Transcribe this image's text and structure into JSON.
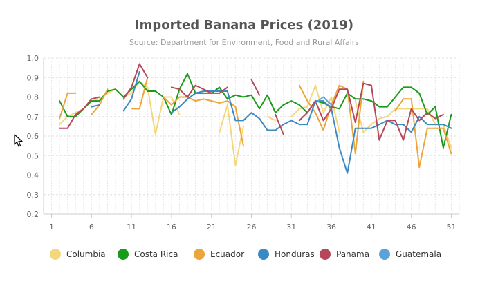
{
  "chart_data": {
    "type": "line",
    "title": "Imported Banana Prices (2019)",
    "subtitle": "Source: Department for Environment, Food and Rural Affairs",
    "xlabel": "",
    "ylabel": "",
    "xlim": [
      0,
      52
    ],
    "ylim": [
      0.2,
      1.0
    ],
    "x_ticks": [
      1,
      6,
      11,
      16,
      21,
      26,
      31,
      36,
      41,
      46,
      51
    ],
    "y_ticks": [
      "0.2",
      "0.3",
      "0.4",
      "0.5",
      "0.6",
      "0.7",
      "0.8",
      "0.9",
      "1.0"
    ],
    "grid": true,
    "legend_position": "bottom",
    "series": [
      {
        "name": "Columbia",
        "color": "#f5d67b",
        "values": [
          null,
          0.66,
          0.7,
          0.72,
          0.74,
          0.78,
          0.79,
          0.82,
          0.84,
          0.8,
          0.82,
          0.88,
          0.85,
          0.61,
          0.8,
          0.8,
          0.71,
          null,
          null,
          null,
          null,
          0.62,
          0.76,
          0.45,
          0.65,
          null,
          null,
          0.7,
          0.68,
          null,
          0.7,
          0.74,
          0.75,
          0.86,
          0.72,
          0.8,
          0.62,
          null,
          0.78,
          0.62,
          0.66,
          0.69,
          0.7,
          0.74,
          0.74,
          0.74,
          0.74,
          0.74,
          0.66,
          0.66,
          0.54
        ]
      },
      {
        "name": "Costa Rica",
        "color": "#1a9a1a",
        "values": [
          null,
          0.78,
          0.7,
          0.7,
          0.74,
          0.78,
          0.78,
          0.83,
          0.84,
          0.8,
          0.84,
          0.88,
          0.83,
          0.83,
          0.8,
          0.71,
          0.84,
          0.92,
          0.82,
          0.82,
          0.82,
          0.85,
          0.79,
          0.81,
          0.8,
          0.81,
          0.74,
          0.81,
          0.72,
          0.76,
          0.78,
          0.76,
          0.72,
          0.78,
          0.77,
          0.75,
          0.74,
          0.82,
          0.79,
          0.79,
          0.78,
          0.75,
          0.75,
          0.8,
          0.85,
          0.85,
          0.82,
          0.71,
          0.75,
          0.54,
          0.71
        ]
      },
      {
        "name": "Ecuador",
        "color": "#eba53a",
        "values": [
          null,
          0.69,
          0.82,
          0.82,
          null,
          0.71,
          0.76,
          0.84,
          null,
          null,
          0.74,
          0.74,
          0.9,
          null,
          0.8,
          0.76,
          0.8,
          0.8,
          0.78,
          0.79,
          0.78,
          0.77,
          0.78,
          0.75,
          0.55,
          null,
          null,
          null,
          null,
          null,
          null,
          0.86,
          0.78,
          0.72,
          0.63,
          0.76,
          0.86,
          0.84,
          0.51,
          0.88,
          null,
          null,
          null,
          0.73,
          0.79,
          0.79,
          0.44,
          0.64,
          0.64,
          0.64,
          0.51
        ]
      },
      {
        "name": "Honduras",
        "color": "#3a88c4",
        "values": [
          null,
          null,
          null,
          null,
          null,
          0.75,
          0.76,
          null,
          null,
          0.73,
          0.79,
          0.93,
          null,
          null,
          null,
          0.72,
          0.75,
          0.79,
          0.82,
          0.83,
          0.83,
          0.83,
          0.83,
          0.68,
          0.68,
          0.72,
          0.69,
          0.63,
          0.63,
          0.66,
          0.68,
          0.66,
          0.66,
          0.78,
          0.78,
          0.74,
          0.54,
          0.41,
          0.64,
          0.64,
          0.64,
          0.66,
          0.68,
          0.66,
          0.66,
          0.62,
          0.7,
          0.66,
          0.66,
          0.66,
          0.64
        ]
      },
      {
        "name": "Panama",
        "color": "#b5475a",
        "values": [
          null,
          0.64,
          0.64,
          0.71,
          0.74,
          0.79,
          0.8,
          null,
          null,
          0.79,
          0.85,
          0.97,
          0.9,
          null,
          null,
          0.85,
          0.84,
          0.8,
          0.86,
          0.84,
          0.82,
          0.82,
          0.85,
          null,
          null,
          0.89,
          0.81,
          null,
          0.71,
          0.61,
          null,
          0.68,
          0.72,
          0.78,
          0.68,
          0.74,
          0.84,
          0.84,
          0.67,
          0.87,
          0.86,
          0.58,
          0.68,
          0.68,
          0.58,
          0.74,
          0.68,
          0.72,
          0.69,
          0.71,
          null
        ]
      },
      {
        "name": "Guatemala",
        "color": "#5aa3d6",
        "values": [
          null,
          null,
          null,
          null,
          null,
          null,
          null,
          null,
          null,
          null,
          null,
          null,
          null,
          null,
          null,
          null,
          null,
          null,
          null,
          null,
          null,
          null,
          null,
          null,
          null,
          null,
          null,
          null,
          null,
          null,
          null,
          null,
          null,
          0.77,
          0.8,
          0.76,
          null,
          null,
          null,
          null,
          null,
          null,
          null,
          null,
          null,
          null,
          null,
          null,
          null,
          null,
          null
        ]
      }
    ]
  }
}
